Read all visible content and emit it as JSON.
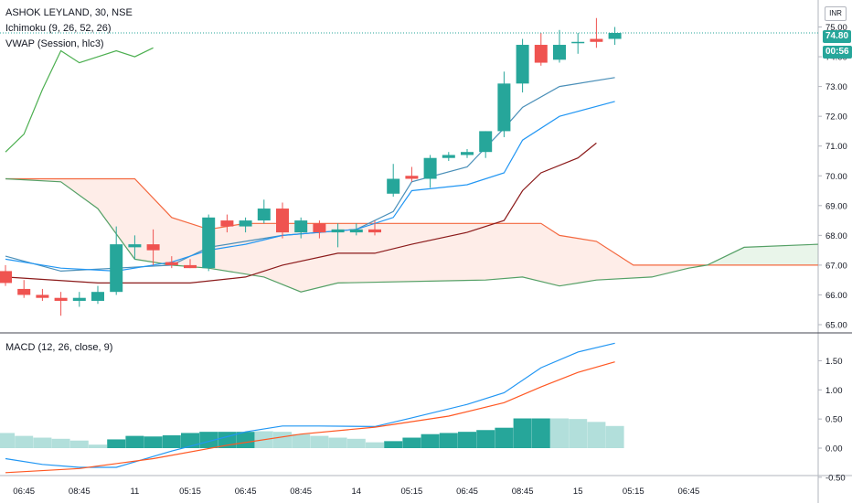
{
  "header": {
    "symbol_line": "ASHOK LEYLAND, 30, NSE",
    "ichimoku_label": "Ichimoku (9, 26, 52, 26)",
    "vwap_label": "VWAP (Session, hlc3)",
    "macd_label": "MACD (12, 26, close, 9)"
  },
  "price_axis": {
    "currency": "INR",
    "last_price": "74.80",
    "countdown": "00:56",
    "ticks": [
      "75.00",
      "74.00",
      "73.00",
      "72.00",
      "71.00",
      "70.00",
      "69.00",
      "68.00",
      "67.00",
      "66.00",
      "65.00"
    ]
  },
  "macd_axis": {
    "ticks": [
      "1.50",
      "1.00",
      "0.50",
      "0.00",
      "-0.50"
    ]
  },
  "time_axis": {
    "labels": [
      "06:45",
      "08:45",
      "11",
      "05:15",
      "06:45",
      "08:45",
      "14",
      "05:15",
      "06:45",
      "08:45",
      "15",
      "05:15",
      "06:45"
    ]
  },
  "colors": {
    "up": "#26a69a",
    "down": "#ef5350",
    "conversion": "#2196f3",
    "base": "#4a8fb8",
    "lagging": "#4caf50",
    "vwap_like": "#8b1a1a",
    "span_a": "#f4683f",
    "span_b": "#55a066",
    "cloud_red": "rgba(244,104,63,0.12)",
    "cloud_green": "rgba(76,175,80,0.12)",
    "macd": "#2196f3",
    "signal": "#ff5722",
    "hist_up": "#26a69a",
    "hist_down_light": "#b2dfdb"
  },
  "chart_data": [
    {
      "type": "candlestick",
      "title": "ASHOK LEYLAND, 30, NSE",
      "ylim": [
        64.8,
        76.0
      ],
      "candles": [
        {
          "o": 66.8,
          "h": 67.0,
          "l": 66.3,
          "c": 66.4
        },
        {
          "o": 66.2,
          "h": 66.5,
          "l": 65.9,
          "c": 66.0
        },
        {
          "o": 66.0,
          "h": 66.2,
          "l": 65.8,
          "c": 65.9
        },
        {
          "o": 65.9,
          "h": 66.1,
          "l": 65.3,
          "c": 65.8
        },
        {
          "o": 65.8,
          "h": 66.1,
          "l": 65.6,
          "c": 65.9
        },
        {
          "o": 65.8,
          "h": 66.3,
          "l": 65.7,
          "c": 66.1
        },
        {
          "o": 66.1,
          "h": 68.3,
          "l": 66.0,
          "c": 67.7
        },
        {
          "o": 67.6,
          "h": 68.0,
          "l": 67.2,
          "c": 67.7
        },
        {
          "o": 67.7,
          "h": 68.2,
          "l": 67.0,
          "c": 67.5
        },
        {
          "o": 67.1,
          "h": 67.3,
          "l": 66.9,
          "c": 67.0
        },
        {
          "o": 67.0,
          "h": 67.2,
          "l": 66.9,
          "c": 66.9
        },
        {
          "o": 66.9,
          "h": 68.7,
          "l": 66.8,
          "c": 68.6
        },
        {
          "o": 68.5,
          "h": 68.7,
          "l": 68.1,
          "c": 68.3
        },
        {
          "o": 68.3,
          "h": 68.6,
          "l": 68.1,
          "c": 68.5
        },
        {
          "o": 68.5,
          "h": 69.2,
          "l": 68.4,
          "c": 68.9
        },
        {
          "o": 68.9,
          "h": 69.1,
          "l": 67.9,
          "c": 68.1
        },
        {
          "o": 68.1,
          "h": 68.6,
          "l": 67.9,
          "c": 68.5
        },
        {
          "o": 68.4,
          "h": 68.5,
          "l": 67.9,
          "c": 68.1
        },
        {
          "o": 68.1,
          "h": 68.4,
          "l": 67.6,
          "c": 68.2
        },
        {
          "o": 68.1,
          "h": 68.4,
          "l": 68.0,
          "c": 68.2
        },
        {
          "o": 68.2,
          "h": 68.5,
          "l": 68.0,
          "c": 68.1
        },
        {
          "o": 69.4,
          "h": 70.4,
          "l": 69.3,
          "c": 69.9
        },
        {
          "o": 70.0,
          "h": 70.3,
          "l": 69.8,
          "c": 69.9
        },
        {
          "o": 69.9,
          "h": 70.7,
          "l": 69.6,
          "c": 70.6
        },
        {
          "o": 70.6,
          "h": 70.8,
          "l": 70.5,
          "c": 70.7
        },
        {
          "o": 70.7,
          "h": 70.9,
          "l": 70.6,
          "c": 70.8
        },
        {
          "o": 70.8,
          "h": 71.5,
          "l": 70.6,
          "c": 71.5
        },
        {
          "o": 71.5,
          "h": 73.5,
          "l": 71.3,
          "c": 73.1
        },
        {
          "o": 73.1,
          "h": 74.6,
          "l": 72.8,
          "c": 74.4
        },
        {
          "o": 74.4,
          "h": 74.8,
          "l": 73.7,
          "c": 73.8
        },
        {
          "o": 73.9,
          "h": 74.9,
          "l": 73.8,
          "c": 74.4
        },
        {
          "o": 74.5,
          "h": 74.8,
          "l": 74.1,
          "c": 74.5
        },
        {
          "o": 74.6,
          "h": 75.3,
          "l": 74.3,
          "c": 74.5
        },
        {
          "o": 74.6,
          "h": 75.0,
          "l": 74.4,
          "c": 74.8
        }
      ],
      "ichimoku": {
        "conversion": [
          [
            0,
            67.2
          ],
          [
            3,
            66.9
          ],
          [
            6,
            66.8
          ],
          [
            9,
            67.1
          ],
          [
            11,
            67.5
          ],
          [
            13,
            67.7
          ],
          [
            15,
            68.0
          ],
          [
            19,
            68.2
          ],
          [
            21,
            68.6
          ],
          [
            22,
            69.5
          ],
          [
            25,
            69.7
          ],
          [
            27,
            70.1
          ],
          [
            28,
            71.2
          ],
          [
            30,
            72.0
          ],
          [
            33,
            72.5
          ]
        ],
        "base": [
          [
            0,
            67.3
          ],
          [
            3,
            66.8
          ],
          [
            6,
            66.9
          ],
          [
            9,
            67.0
          ],
          [
            11,
            67.6
          ],
          [
            13,
            67.8
          ],
          [
            15,
            68.0
          ],
          [
            19,
            68.2
          ],
          [
            21,
            68.8
          ],
          [
            22,
            69.8
          ],
          [
            25,
            70.3
          ],
          [
            27,
            71.6
          ],
          [
            28,
            72.3
          ],
          [
            30,
            73.0
          ],
          [
            33,
            73.3
          ]
        ],
        "lagging": [
          [
            0,
            70.8
          ],
          [
            1,
            71.4
          ],
          [
            2,
            72.9
          ],
          [
            3,
            74.2
          ],
          [
            4,
            73.8
          ],
          [
            5,
            74.0
          ],
          [
            6,
            74.2
          ],
          [
            7,
            74.0
          ],
          [
            8,
            74.3
          ]
        ],
        "span_a": [
          [
            0,
            69.9
          ],
          [
            7,
            69.9
          ],
          [
            9,
            68.6
          ],
          [
            11,
            68.2
          ],
          [
            13,
            68.4
          ],
          [
            29,
            68.4
          ],
          [
            30,
            68.0
          ],
          [
            32,
            67.8
          ],
          [
            34,
            67.0
          ],
          [
            44,
            67.0
          ]
        ],
        "span_b": [
          [
            0,
            69.9
          ],
          [
            3,
            69.8
          ],
          [
            5,
            68.9
          ],
          [
            7,
            67.2
          ],
          [
            9,
            67.0
          ],
          [
            11,
            66.9
          ],
          [
            14,
            66.6
          ],
          [
            16,
            66.1
          ],
          [
            18,
            66.4
          ],
          [
            26,
            66.5
          ],
          [
            28,
            66.6
          ],
          [
            30,
            66.3
          ],
          [
            32,
            66.5
          ],
          [
            35,
            66.6
          ],
          [
            37,
            66.9
          ],
          [
            38,
            67.0
          ],
          [
            40,
            67.6
          ],
          [
            44,
            67.7
          ]
        ],
        "vwap_red": [
          [
            0,
            66.6
          ],
          [
            5,
            66.4
          ],
          [
            10,
            66.4
          ],
          [
            13,
            66.6
          ],
          [
            15,
            67.0
          ],
          [
            18,
            67.4
          ],
          [
            20,
            67.4
          ],
          [
            22,
            67.7
          ],
          [
            25,
            68.1
          ],
          [
            27,
            68.5
          ],
          [
            28,
            69.5
          ],
          [
            29,
            70.1
          ],
          [
            31,
            70.6
          ],
          [
            32,
            71.1
          ]
        ]
      }
    },
    {
      "type": "macd",
      "title": "MACD (12, 26, close, 9)",
      "ylim": [
        -0.55,
        1.95
      ],
      "histogram": [
        0.26,
        0.21,
        0.18,
        0.16,
        0.13,
        0.06,
        0.15,
        0.21,
        0.2,
        0.22,
        0.26,
        0.28,
        0.28,
        0.28,
        0.29,
        0.28,
        0.24,
        0.21,
        0.18,
        0.16,
        0.1,
        0.12,
        0.18,
        0.24,
        0.26,
        0.28,
        0.31,
        0.35,
        0.51,
        0.51,
        0.51,
        0.5,
        0.45,
        0.38
      ],
      "hist_up": [
        false,
        false,
        false,
        false,
        false,
        false,
        true,
        true,
        true,
        true,
        true,
        true,
        true,
        true,
        false,
        false,
        false,
        false,
        false,
        false,
        false,
        true,
        true,
        true,
        true,
        true,
        true,
        true,
        true,
        true,
        false,
        false,
        false,
        false
      ],
      "macd": [
        [
          0,
          -0.18
        ],
        [
          2,
          -0.28
        ],
        [
          4,
          -0.33
        ],
        [
          6,
          -0.33
        ],
        [
          9,
          -0.05
        ],
        [
          13,
          0.28
        ],
        [
          15,
          0.38
        ],
        [
          17,
          0.38
        ],
        [
          20,
          0.37
        ],
        [
          22,
          0.52
        ],
        [
          25,
          0.75
        ],
        [
          27,
          0.95
        ],
        [
          29,
          1.38
        ],
        [
          31,
          1.65
        ],
        [
          33,
          1.8
        ]
      ],
      "signal": [
        [
          0,
          -0.42
        ],
        [
          4,
          -0.35
        ],
        [
          8,
          -0.18
        ],
        [
          12,
          0.05
        ],
        [
          16,
          0.24
        ],
        [
          20,
          0.36
        ],
        [
          24,
          0.55
        ],
        [
          27,
          0.78
        ],
        [
          29,
          1.05
        ],
        [
          31,
          1.3
        ],
        [
          33,
          1.48
        ]
      ]
    }
  ]
}
